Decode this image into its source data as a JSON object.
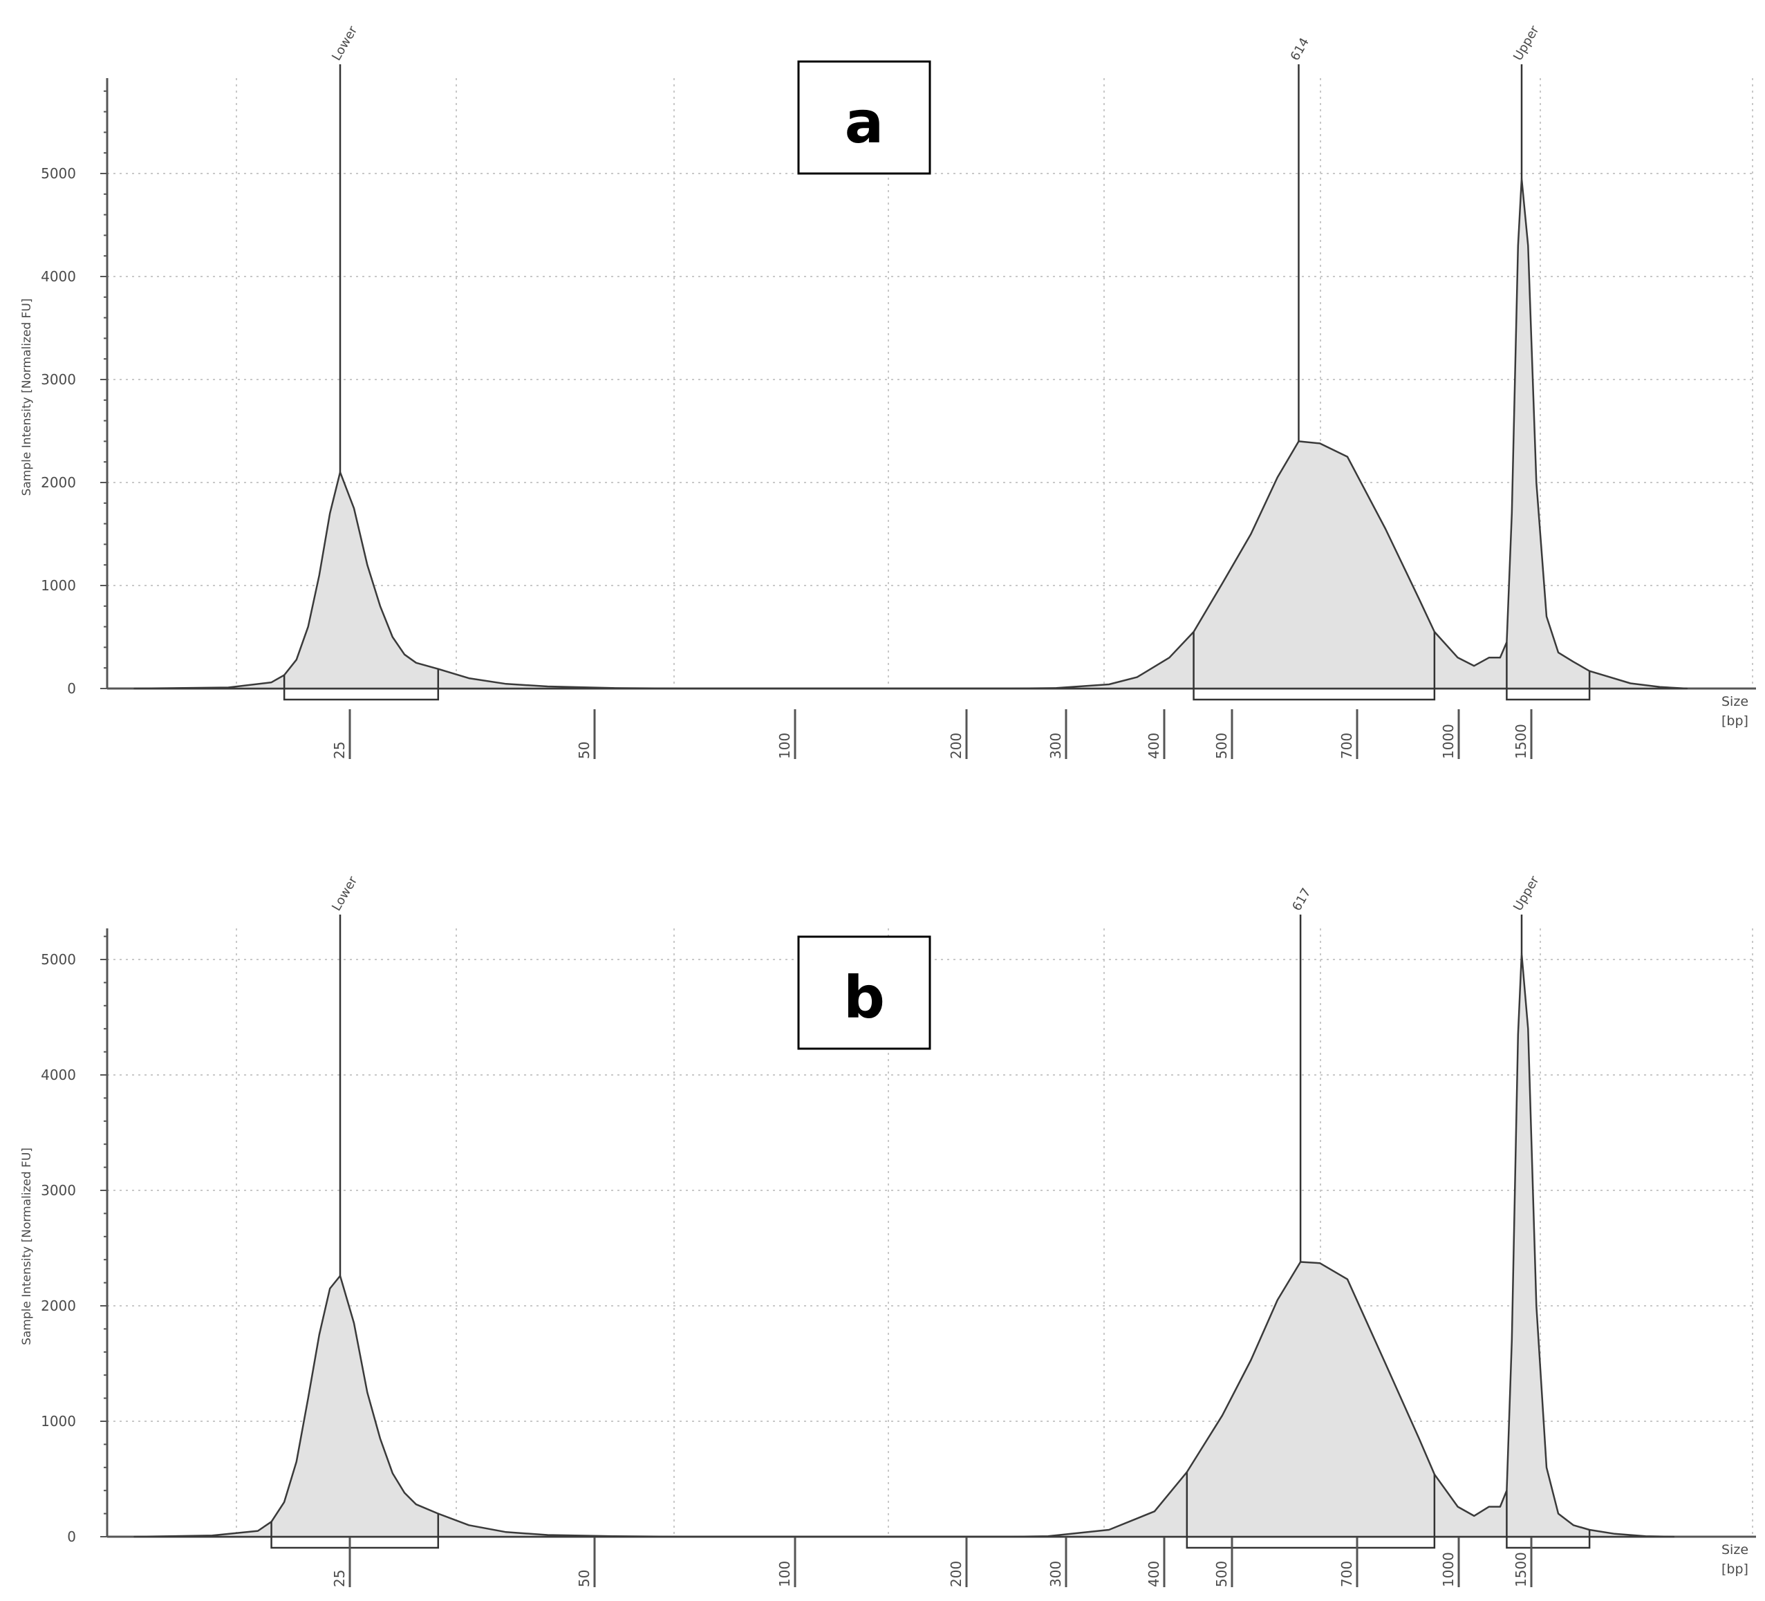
{
  "chart_data": [
    {
      "type": "area",
      "panel_label": "a",
      "ylabel": "Sample Intensity [Normalized FU]",
      "xlabel": "Size\n[bp]",
      "xlabel_lines": [
        "Size",
        "[bp]"
      ],
      "yticks": [
        0,
        1000,
        2000,
        3000,
        4000,
        5000
      ],
      "ylim": [
        0,
        5900
      ],
      "x_ticks_bp": [
        25,
        50,
        100,
        200,
        300,
        400,
        500,
        700,
        1000,
        1500
      ],
      "x_tick_labels": [
        "25",
        "50",
        "100",
        "200",
        "300",
        "400",
        "500",
        "700",
        "1000",
        "1500"
      ],
      "grid": true,
      "peak_labels": [
        {
          "label": "Lower",
          "x_bp": 25,
          "y": 2100
        },
        {
          "label": "614",
          "x_bp": 614,
          "y": 2400
        },
        {
          "label": "Upper",
          "x_bp": 1500,
          "y": 4950
        }
      ],
      "regions_bp": [
        [
          20,
          33
        ],
        [
          455,
          950
        ],
        [
          1380,
          1850
        ]
      ],
      "trace": [
        [
          11,
          0
        ],
        [
          16,
          10
        ],
        [
          19,
          60
        ],
        [
          20,
          130
        ],
        [
          21,
          280
        ],
        [
          22,
          600
        ],
        [
          23,
          1100
        ],
        [
          24,
          1700
        ],
        [
          25,
          2100
        ],
        [
          26,
          1750
        ],
        [
          27,
          1200
        ],
        [
          28,
          800
        ],
        [
          29,
          500
        ],
        [
          30,
          330
        ],
        [
          31,
          250
        ],
        [
          33,
          190
        ],
        [
          36,
          100
        ],
        [
          40,
          45
        ],
        [
          45,
          20
        ],
        [
          55,
          5
        ],
        [
          70,
          0
        ],
        [
          250,
          0
        ],
        [
          300,
          5
        ],
        [
          350,
          40
        ],
        [
          380,
          110
        ],
        [
          420,
          300
        ],
        [
          455,
          550
        ],
        [
          500,
          1020
        ],
        [
          540,
          1500
        ],
        [
          580,
          2050
        ],
        [
          614,
          2400
        ],
        [
          650,
          2380
        ],
        [
          700,
          2250
        ],
        [
          800,
          1550
        ],
        [
          900,
          870
        ],
        [
          950,
          550
        ],
        [
          1050,
          300
        ],
        [
          1150,
          220
        ],
        [
          1250,
          300
        ],
        [
          1330,
          300
        ],
        [
          1380,
          450
        ],
        [
          1420,
          1700
        ],
        [
          1470,
          4300
        ],
        [
          1500,
          4950
        ],
        [
          1530,
          4300
        ],
        [
          1570,
          2000
        ],
        [
          1620,
          700
        ],
        [
          1680,
          350
        ],
        [
          1760,
          260
        ],
        [
          1850,
          170
        ],
        [
          1950,
          120
        ],
        [
          2100,
          50
        ],
        [
          2300,
          15
        ],
        [
          2500,
          0
        ]
      ]
    },
    {
      "type": "area",
      "panel_label": "b",
      "ylabel": "Sample Intensity [Normalized FU]",
      "xlabel": "Size\n[bp]",
      "xlabel_lines": [
        "Size",
        "[bp]"
      ],
      "yticks": [
        0,
        1000,
        2000,
        3000,
        4000,
        5000
      ],
      "ylim": [
        0,
        5250
      ],
      "x_ticks_bp": [
        25,
        50,
        100,
        200,
        300,
        400,
        500,
        700,
        1000,
        1500
      ],
      "x_tick_labels": [
        "25",
        "50",
        "100",
        "200",
        "300",
        "400",
        "500",
        "700",
        "1000",
        "1500"
      ],
      "grid": true,
      "peak_labels": [
        {
          "label": "Lower",
          "x_bp": 25,
          "y": 2260
        },
        {
          "label": "617",
          "x_bp": 617,
          "y": 2380
        },
        {
          "label": "Upper",
          "x_bp": 1500,
          "y": 5050
        }
      ],
      "regions_bp": [
        [
          19,
          33
        ],
        [
          445,
          950
        ],
        [
          1380,
          1850
        ]
      ],
      "trace": [
        [
          11,
          0
        ],
        [
          15,
          10
        ],
        [
          18,
          50
        ],
        [
          19,
          130
        ],
        [
          20,
          300
        ],
        [
          21,
          650
        ],
        [
          22,
          1200
        ],
        [
          23,
          1750
        ],
        [
          24,
          2150
        ],
        [
          25,
          2260
        ],
        [
          26,
          1850
        ],
        [
          27,
          1250
        ],
        [
          28,
          850
        ],
        [
          29,
          550
        ],
        [
          30,
          380
        ],
        [
          31,
          280
        ],
        [
          33,
          200
        ],
        [
          36,
          100
        ],
        [
          40,
          40
        ],
        [
          45,
          15
        ],
        [
          55,
          5
        ],
        [
          70,
          0
        ],
        [
          250,
          0
        ],
        [
          290,
          5
        ],
        [
          350,
          60
        ],
        [
          400,
          220
        ],
        [
          445,
          560
        ],
        [
          500,
          1050
        ],
        [
          540,
          1530
        ],
        [
          580,
          2050
        ],
        [
          617,
          2380
        ],
        [
          650,
          2370
        ],
        [
          700,
          2230
        ],
        [
          800,
          1500
        ],
        [
          900,
          850
        ],
        [
          950,
          540
        ],
        [
          1050,
          260
        ],
        [
          1150,
          180
        ],
        [
          1250,
          260
        ],
        [
          1330,
          260
        ],
        [
          1380,
          400
        ],
        [
          1420,
          1700
        ],
        [
          1470,
          4350
        ],
        [
          1500,
          5050
        ],
        [
          1530,
          4400
        ],
        [
          1570,
          2000
        ],
        [
          1620,
          600
        ],
        [
          1680,
          200
        ],
        [
          1760,
          100
        ],
        [
          1850,
          60
        ],
        [
          2000,
          25
        ],
        [
          2200,
          5
        ],
        [
          2400,
          0
        ]
      ]
    }
  ]
}
